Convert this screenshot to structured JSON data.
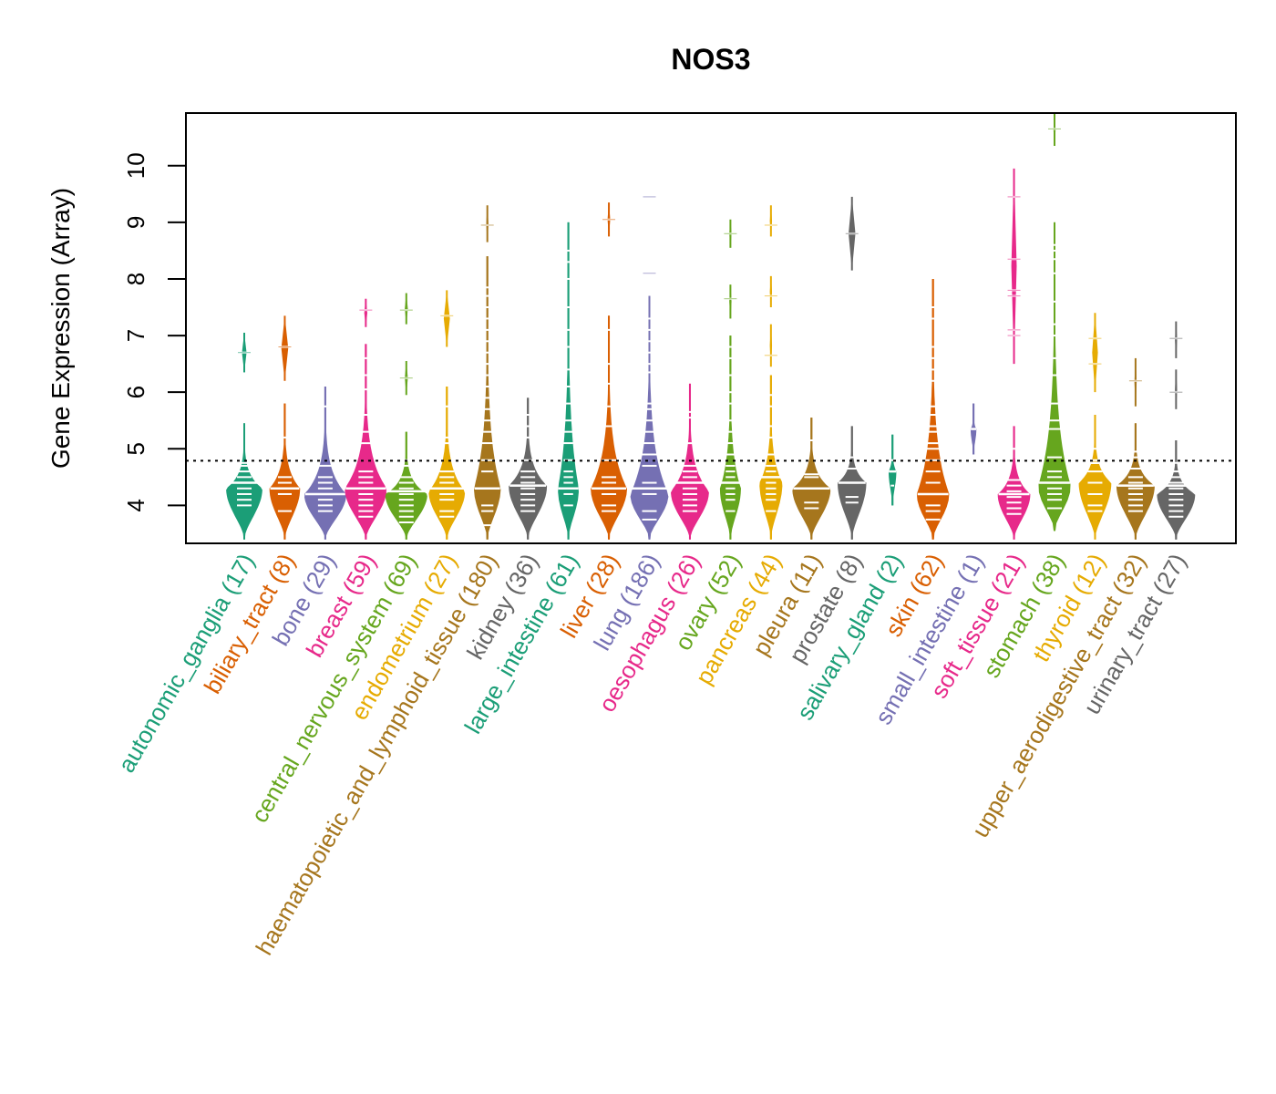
{
  "chart_data": {
    "type": "violin",
    "title": "NOS3",
    "xlabel": "",
    "ylabel": "Gene Expression (Array)",
    "ylim": [
      3.33,
      10.93
    ],
    "yticks": [
      4,
      5,
      6,
      7,
      8,
      9,
      10
    ],
    "grid": false,
    "legend": "none",
    "reference_line": {
      "value": 4.79,
      "style": "dotted"
    },
    "categories": [
      {
        "name": "autonomic_ganglia",
        "n": 17,
        "label": "autonomic_ganglia (17)",
        "color": "#1B9E77",
        "body": {
          "min": 3.4,
          "max": 5.45,
          "median": 4.4,
          "mode": 4.3,
          "width": 0.95
        },
        "segments": [
          {
            "min": 6.35,
            "max": 7.05,
            "width": 0.12
          }
        ],
        "points": [
          4.0,
          4.1,
          4.2,
          4.3,
          4.4,
          4.5,
          4.6,
          4.7,
          4.75,
          6.7
        ]
      },
      {
        "name": "biliary_tract",
        "n": 8,
        "label": "biliary_tract (8)",
        "color": "#D95F02",
        "body": {
          "min": 3.4,
          "max": 5.8,
          "median": 4.3,
          "mode": 4.3,
          "width": 0.8
        },
        "segments": [
          {
            "min": 6.2,
            "max": 7.35,
            "width": 0.18
          }
        ],
        "points": [
          3.9,
          4.2,
          4.3,
          4.4,
          4.5,
          5.2,
          6.8
        ]
      },
      {
        "name": "bone",
        "n": 29,
        "label": "bone (29)",
        "color": "#7570B3",
        "body": {
          "min": 3.4,
          "max": 6.1,
          "median": 4.2,
          "mode": 4.2,
          "width": 1.1
        },
        "segments": [],
        "points": [
          3.9,
          4.0,
          4.1,
          4.2,
          4.3,
          4.4,
          4.5,
          4.7,
          5.75
        ]
      },
      {
        "name": "breast",
        "n": 59,
        "label": "breast (59)",
        "color": "#E7298A",
        "body": {
          "min": 3.4,
          "max": 6.85,
          "median": 4.3,
          "mode": 4.3,
          "width": 1.1
        },
        "segments": [
          {
            "min": 7.15,
            "max": 7.65,
            "width": 0.08
          }
        ],
        "points": [
          3.8,
          3.9,
          4.0,
          4.1,
          4.2,
          4.3,
          4.4,
          4.5,
          4.6,
          5.1,
          5.3,
          5.6,
          6.05,
          6.3,
          6.6,
          7.45
        ]
      },
      {
        "name": "central_nervous_system",
        "n": 69,
        "label": "central_nervous_system (69)",
        "color": "#66A61E",
        "body": {
          "min": 3.4,
          "max": 5.3,
          "median": 4.25,
          "mode": 4.2,
          "width": 1.1
        },
        "segments": [
          {
            "min": 5.95,
            "max": 6.55,
            "width": 0.08
          },
          {
            "min": 7.2,
            "max": 7.75,
            "width": 0.08
          }
        ],
        "points": [
          3.7,
          3.8,
          3.9,
          4.0,
          4.1,
          4.2,
          4.3,
          4.4,
          4.5,
          4.7,
          4.8,
          6.25,
          7.45
        ]
      },
      {
        "name": "endometrium",
        "n": 27,
        "label": "endometrium (27)",
        "color": "#E6AB02",
        "body": {
          "min": 3.4,
          "max": 6.1,
          "median": 4.3,
          "mode": 4.25,
          "width": 0.95
        },
        "segments": [
          {
            "min": 6.8,
            "max": 7.8,
            "width": 0.16
          }
        ],
        "points": [
          3.8,
          3.9,
          4.1,
          4.2,
          4.3,
          4.4,
          4.5,
          4.6,
          5.1,
          5.2,
          5.75,
          7.35
        ]
      },
      {
        "name": "haematopoietic_and_lymphoid_tissue",
        "n": 180,
        "label": "haematopoietic_and_lymphoid_tissue (180)",
        "color": "#A6761D",
        "body": {
          "min": 3.4,
          "max": 8.4,
          "median": 4.3,
          "mode": 4.3,
          "width": 0.7
        },
        "segments": [
          {
            "min": 8.65,
            "max": 9.3,
            "width": 0.05
          }
        ],
        "points": [
          3.65,
          3.9,
          4.0,
          4.3,
          4.6,
          4.8,
          5.1,
          5.3,
          5.5,
          5.7,
          5.9,
          6.1,
          6.3,
          6.5,
          6.7,
          6.9,
          7.1,
          7.3,
          7.5,
          7.7,
          7.85,
          8.95
        ]
      },
      {
        "name": "kidney",
        "n": 36,
        "label": "kidney (36)",
        "color": "#666666",
        "body": {
          "min": 3.4,
          "max": 5.9,
          "median": 4.35,
          "mode": 4.35,
          "width": 1.0
        },
        "segments": [],
        "points": [
          3.9,
          4.0,
          4.1,
          4.2,
          4.3,
          4.4,
          4.5,
          4.6,
          4.8,
          5.2,
          5.4,
          5.6
        ]
      },
      {
        "name": "large_intestine",
        "n": 61,
        "label": "large_intestine (61)",
        "color": "#1B9E77",
        "body": {
          "min": 3.4,
          "max": 9.0,
          "median": 4.3,
          "mode": 4.3,
          "width": 0.55
        },
        "segments": [],
        "points": [
          4.0,
          4.2,
          4.3,
          4.4,
          4.5,
          4.6,
          4.8,
          5.1,
          5.3,
          5.5,
          5.8,
          6.1,
          6.4,
          6.8,
          7.1,
          7.5,
          8.0,
          8.3,
          8.5
        ]
      },
      {
        "name": "liver",
        "n": 28,
        "label": "liver (28)",
        "color": "#D95F02",
        "body": {
          "min": 3.4,
          "max": 7.35,
          "median": 4.3,
          "mode": 4.3,
          "width": 0.95
        },
        "segments": [
          {
            "min": 8.75,
            "max": 9.35,
            "width": 0.07
          }
        ],
        "points": [
          3.9,
          4.0,
          4.2,
          4.3,
          4.4,
          4.5,
          4.8,
          5.4,
          5.75,
          6.15,
          6.5,
          7.1,
          9.05
        ]
      },
      {
        "name": "lung",
        "n": 186,
        "label": "lung (186)",
        "color": "#7570B3",
        "body": {
          "min": 3.4,
          "max": 7.7,
          "median": 4.3,
          "mode": 4.2,
          "width": 1.0
        },
        "segments": [],
        "points": [
          3.75,
          3.9,
          4.2,
          4.4,
          4.7,
          4.9,
          5.1,
          5.3,
          5.5,
          5.7,
          5.8,
          6.35,
          6.5,
          6.7,
          6.9,
          7.1,
          7.3,
          8.1,
          9.45
        ]
      },
      {
        "name": "oesophagus",
        "n": 26,
        "label": "oesophagus (26)",
        "color": "#E7298A",
        "body": {
          "min": 3.4,
          "max": 6.15,
          "median": 4.4,
          "mode": 4.25,
          "width": 1.0
        },
        "segments": [],
        "points": [
          3.9,
          4.0,
          4.1,
          4.2,
          4.3,
          4.4,
          4.5,
          4.6,
          4.7,
          5.1,
          5.55,
          5.65
        ]
      },
      {
        "name": "ovary",
        "n": 52,
        "label": "ovary (52)",
        "color": "#66A61E",
        "body": {
          "min": 3.4,
          "max": 7.0,
          "median": 4.4,
          "mode": 4.3,
          "width": 0.55
        },
        "segments": [
          {
            "min": 7.3,
            "max": 7.9,
            "width": 0.05
          },
          {
            "min": 8.55,
            "max": 9.05,
            "width": 0.05
          }
        ],
        "points": [
          3.9,
          4.1,
          4.2,
          4.3,
          4.4,
          4.5,
          4.6,
          4.7,
          4.9,
          5.1,
          5.3,
          5.5,
          5.8,
          6.0,
          6.3,
          6.6,
          6.8,
          7.65,
          8.8
        ]
      },
      {
        "name": "pancreas",
        "n": 44,
        "label": "pancreas (44)",
        "color": "#E6AB02",
        "body": {
          "min": 3.4,
          "max": 6.3,
          "median": 4.5,
          "mode": 4.4,
          "width": 0.6
        },
        "segments": [
          {
            "min": 6.45,
            "max": 7.2,
            "width": 0.05
          },
          {
            "min": 7.5,
            "max": 8.05,
            "width": 0.05
          },
          {
            "min": 8.75,
            "max": 9.3,
            "width": 0.05
          }
        ],
        "points": [
          3.9,
          4.1,
          4.2,
          4.3,
          4.4,
          4.6,
          4.7,
          4.9,
          5.2,
          5.4,
          5.75,
          5.95,
          6.65,
          7.7,
          8.95
        ]
      },
      {
        "name": "pleura",
        "n": 11,
        "label": "pleura (11)",
        "color": "#A6761D",
        "body": {
          "min": 3.4,
          "max": 5.55,
          "median": 4.3,
          "mode": 4.3,
          "width": 1.0
        },
        "segments": [],
        "points": [
          3.95,
          4.05,
          4.3,
          4.5,
          4.55,
          5.15
        ]
      },
      {
        "name": "prostate",
        "n": 8,
        "label": "prostate (8)",
        "color": "#666666",
        "body": {
          "min": 3.4,
          "max": 5.4,
          "median": 4.4,
          "mode": 4.4,
          "width": 0.75
        },
        "segments": [
          {
            "min": 8.15,
            "max": 9.45,
            "width": 0.18
          }
        ],
        "points": [
          4.05,
          4.15,
          4.4,
          4.65,
          4.85,
          8.8
        ]
      },
      {
        "name": "salivary_gland",
        "n": 2,
        "label": "salivary_gland (2)",
        "color": "#1B9E77",
        "body": {
          "min": 4.0,
          "max": 5.25,
          "median": 4.6,
          "mode": 4.6,
          "width": 0.2
        },
        "segments": [],
        "points": [
          4.35,
          4.8
        ]
      },
      {
        "name": "skin",
        "n": 62,
        "label": "skin (62)",
        "color": "#D95F02",
        "body": {
          "min": 3.4,
          "max": 8.0,
          "median": 4.2,
          "mode": 4.2,
          "width": 0.85
        },
        "segments": [],
        "points": [
          3.75,
          3.9,
          4.0,
          4.2,
          4.4,
          4.6,
          4.8,
          5.0,
          5.1,
          5.3,
          5.4,
          5.6,
          5.75,
          6.2,
          6.4,
          6.6,
          6.8,
          7.3,
          7.5
        ]
      },
      {
        "name": "small_intestine",
        "n": 1,
        "label": "small_intestine (1)",
        "color": "#7570B3",
        "body": {
          "min": 4.9,
          "max": 5.8,
          "median": 5.35,
          "mode": 5.35,
          "width": 0.15
        },
        "segments": [],
        "points": [
          5.35
        ]
      },
      {
        "name": "soft_tissue",
        "n": 21,
        "label": "soft_tissue (21)",
        "color": "#E7298A",
        "body": {
          "min": 3.4,
          "max": 5.4,
          "median": 4.2,
          "mode": 4.2,
          "width": 0.85
        },
        "segments": [
          {
            "min": 6.5,
            "max": 9.95,
            "width": 0.14
          }
        ],
        "points": [
          3.85,
          3.95,
          4.05,
          4.15,
          4.25,
          4.35,
          4.45,
          5.0,
          7.0,
          7.1,
          7.7,
          7.8,
          8.35,
          9.45
        ]
      },
      {
        "name": "stomach",
        "n": 38,
        "label": "stomach (38)",
        "color": "#66A61E",
        "body": {
          "min": 3.55,
          "max": 9.0,
          "median": 4.4,
          "mode": 4.35,
          "width": 0.85
        },
        "segments": [
          {
            "min": 10.35,
            "max": 10.93,
            "width": 0.05
          }
        ],
        "points": [
          3.95,
          4.1,
          4.2,
          4.3,
          4.4,
          4.5,
          4.6,
          4.85,
          5.35,
          5.5,
          5.8,
          6.3,
          6.6,
          7.0,
          7.2,
          7.6,
          8.1,
          8.35,
          8.5,
          8.6,
          10.65
        ]
      },
      {
        "name": "thyroid",
        "n": 12,
        "label": "thyroid (12)",
        "color": "#E6AB02",
        "body": {
          "min": 3.4,
          "max": 5.6,
          "median": 4.75,
          "mode": 4.4,
          "width": 0.85
        },
        "segments": [
          {
            "min": 6.0,
            "max": 7.4,
            "width": 0.15
          }
        ],
        "points": [
          3.9,
          4.0,
          4.2,
          4.4,
          4.6,
          4.8,
          5.0,
          6.5,
          6.95
        ]
      },
      {
        "name": "upper_aerodigestive_tract",
        "n": 32,
        "label": "upper_aerodigestive_tract (32)",
        "color": "#A6761D",
        "body": {
          "min": 3.4,
          "max": 5.45,
          "median": 4.35,
          "mode": 4.35,
          "width": 1.0
        },
        "segments": [
          {
            "min": 5.75,
            "max": 6.6,
            "width": 0.05
          }
        ],
        "points": [
          3.9,
          4.0,
          4.1,
          4.2,
          4.3,
          4.4,
          4.5,
          4.65,
          4.85,
          4.95,
          6.2
        ]
      },
      {
        "name": "urinary_tract",
        "n": 27,
        "label": "urinary_tract (27)",
        "color": "#666666",
        "body": {
          "min": 3.4,
          "max": 5.15,
          "median": 4.35,
          "mode": 4.2,
          "width": 1.0
        },
        "segments": [
          {
            "min": 5.7,
            "max": 6.4,
            "width": 0.05
          },
          {
            "min": 6.6,
            "max": 7.25,
            "width": 0.05
          }
        ],
        "points": [
          3.8,
          3.9,
          4.0,
          4.1,
          4.2,
          4.3,
          4.4,
          4.5,
          4.6,
          4.75,
          6.0,
          6.95
        ]
      }
    ]
  }
}
